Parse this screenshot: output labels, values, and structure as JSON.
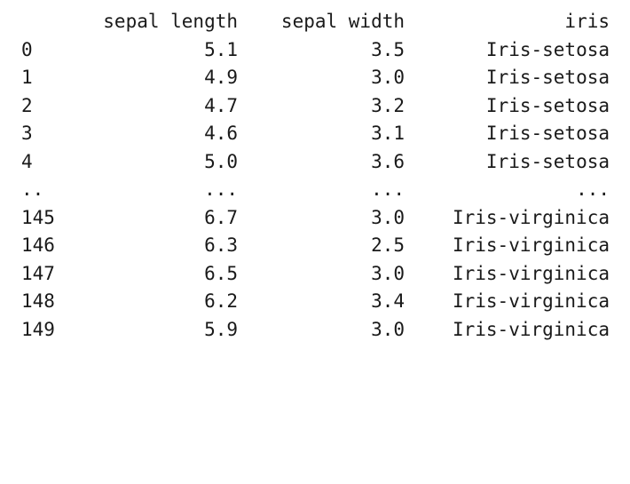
{
  "table": {
    "columns": [
      "sepal length",
      "sepal width",
      "iris"
    ],
    "rows": [
      {
        "index": "0",
        "sepal_length": "5.1",
        "sepal_width": "3.5",
        "iris": "Iris-setosa"
      },
      {
        "index": "1",
        "sepal_length": "4.9",
        "sepal_width": "3.0",
        "iris": "Iris-setosa"
      },
      {
        "index": "2",
        "sepal_length": "4.7",
        "sepal_width": "3.2",
        "iris": "Iris-setosa"
      },
      {
        "index": "3",
        "sepal_length": "4.6",
        "sepal_width": "3.1",
        "iris": "Iris-setosa"
      },
      {
        "index": "4",
        "sepal_length": "5.0",
        "sepal_width": "3.6",
        "iris": "Iris-setosa"
      },
      {
        "index": "..",
        "sepal_length": "...",
        "sepal_width": "...",
        "iris": "..."
      },
      {
        "index": "145",
        "sepal_length": "6.7",
        "sepal_width": "3.0",
        "iris": "Iris-virginica"
      },
      {
        "index": "146",
        "sepal_length": "6.3",
        "sepal_width": "2.5",
        "iris": "Iris-virginica"
      },
      {
        "index": "147",
        "sepal_length": "6.5",
        "sepal_width": "3.0",
        "iris": "Iris-virginica"
      },
      {
        "index": "148",
        "sepal_length": "6.2",
        "sepal_width": "3.4",
        "iris": "Iris-virginica"
      },
      {
        "index": "149",
        "sepal_length": "5.9",
        "sepal_width": "3.0",
        "iris": "Iris-virginica"
      }
    ]
  }
}
